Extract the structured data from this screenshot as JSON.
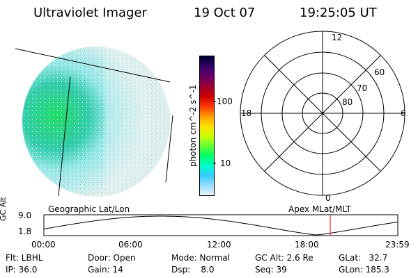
{
  "header": {
    "title": "Ultraviolet Imager",
    "date": "19 Oct 07",
    "time": "19:25:05 UT"
  },
  "colorbar": {
    "label": "photon cm^-2 s^-1",
    "ticks": [
      "100",
      "10"
    ],
    "colors": [
      "#000033",
      "#330066",
      "#660066",
      "#990033",
      "#cc0000",
      "#ff3300",
      "#ff9900",
      "#ffdd00",
      "#ccff00",
      "#66ff33",
      "#00ff66",
      "#00ffcc",
      "#33ccff",
      "#99ddff",
      "#e6f5f5"
    ]
  },
  "polar": {
    "lat_labels": [
      "60",
      "70",
      "80"
    ],
    "mlt_labels": {
      "top": "12",
      "left": "18",
      "right": "6",
      "bottom": "0"
    }
  },
  "panels": {
    "left_caption": "Geographic Lat/Lon",
    "right_caption": "Apex MLat/MLT"
  },
  "timeline": {
    "axis_label": "GC Alt",
    "y_ticks": [
      "9.0",
      "1.8"
    ],
    "x_ticks": [
      "00:00",
      "06:00",
      "12:00",
      "18:00",
      "23:59"
    ],
    "current_time_fraction": 0.8091
  },
  "info": {
    "flt": "Flt: LBHL",
    "ip": "IP: 36.0",
    "door": "Door: Open",
    "gain": "Gain: 14",
    "mode": "Mode: Normal",
    "dsp": "Dsp:    8.0",
    "gc_alt": "GC Alt: 2.6 Re",
    "seq": "Seq: 39",
    "glat": "GLat:   32.7",
    "glon": "GLon: 185.3"
  }
}
